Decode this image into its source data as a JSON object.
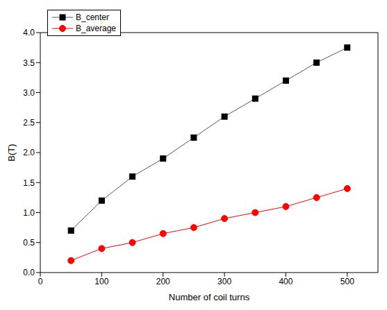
{
  "chart_data": {
    "type": "line",
    "x_label": "Number of coil turns",
    "y_label": "B(T)",
    "x": [
      50,
      100,
      150,
      200,
      250,
      300,
      350,
      400,
      450,
      500
    ],
    "series": [
      {
        "name": "B_center",
        "color": "#000000",
        "marker": "square",
        "values": [
          0.7,
          1.2,
          1.6,
          1.9,
          2.25,
          2.6,
          2.9,
          3.2,
          3.5,
          3.75
        ]
      },
      {
        "name": "B_average",
        "color": "#ff0000",
        "marker": "circle",
        "values": [
          0.2,
          0.4,
          0.5,
          0.65,
          0.75,
          0.9,
          1.0,
          1.1,
          1.25,
          1.4
        ]
      }
    ],
    "xlim": [
      0,
      550
    ],
    "xticks": [
      0,
      100,
      200,
      300,
      400,
      500
    ],
    "ylim": [
      0,
      4
    ],
    "yticks": [
      {
        "value": 0,
        "label": "0.0"
      },
      0.5,
      {
        "value": 1,
        "label": "1.0"
      },
      1.5,
      {
        "value": 2,
        "label": "2.0"
      },
      2.5,
      {
        "value": 3,
        "label": "3.0"
      },
      3.5,
      {
        "value": 4,
        "label": "4.0"
      }
    ],
    "grid": false,
    "legend": "upper left"
  }
}
